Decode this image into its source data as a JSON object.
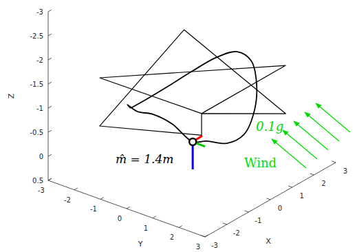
{
  "chart_data": {
    "type": "line3d",
    "xlabel": "X",
    "ylabel": "Y",
    "zlabel": "Z",
    "xlim": [
      -3,
      3
    ],
    "ylim": [
      -3,
      3
    ],
    "zlim": [
      -3,
      0.5
    ],
    "xticks": [
      -3,
      -2,
      -1,
      0,
      1,
      2,
      3
    ],
    "yticks": [
      -3,
      -2,
      -1,
      0,
      1,
      2,
      3
    ],
    "zticks": [
      -3,
      -2.5,
      -2,
      -1.5,
      -1,
      -0.5,
      0,
      0.5
    ],
    "grid": false,
    "series": [
      {
        "type": "spline",
        "color": "#000000",
        "x": [
          -2.25,
          -1.7,
          -1.2,
          -0.5,
          0.13,
          0.77,
          0.81,
          0.3,
          -0.38,
          -0.81,
          -1.08,
          -1.1,
          -1.38,
          -1.34,
          -1.68,
          -2.06,
          -2.14,
          -2.25
        ],
        "y": [
          -0.47,
          -0.27,
          0.1,
          0.44,
          0.84,
          1.09,
          1.59,
          2.22,
          2.71,
          2.67,
          2.24,
          1.47,
          1.18,
          0.36,
          -0.1,
          -0.37,
          -0.69,
          -0.47
        ],
        "z": [
          -1.3,
          -1.4,
          -1.6,
          -1.8,
          -2.0,
          -2.0,
          -1.9,
          -1.7,
          -1.4,
          -1.0,
          -0.8,
          -0.7,
          -0.7,
          -0.9,
          -1.1,
          -1.2,
          -1.3,
          -1.3
        ]
      },
      {
        "type": "line",
        "color": "#000000",
        "x": [
          -1.78,
          2.14,
          -1.73,
          -1.78
        ],
        "y": [
          -2.05,
          1.8,
          1.81,
          -2.05
        ],
        "z": [
          -1.5,
          -1.5,
          -1.5,
          -1.5
        ]
      },
      {
        "type": "line",
        "color": "#000000",
        "x": [
          2.1,
          2.14,
          -1.73,
          -1.73,
          -1.78,
          2.1
        ],
        "y": [
          -2.05,
          1.8,
          1.81,
          1.81,
          -2.05,
          -2.05
        ],
        "z": [
          -1.5,
          -0.5,
          -1.5,
          -1.05,
          -0.5,
          -1.5
        ]
      }
    ],
    "vehicle": {
      "x": -1.38,
      "y": 1.18,
      "z": -0.7
    },
    "annotations": [
      {
        "text": "m̂ = 1.4m",
        "color": "#000000"
      },
      {
        "text": "0.1g",
        "color": "#00dd00"
      },
      {
        "text": "Wind",
        "color": "#00dd00"
      }
    ]
  }
}
